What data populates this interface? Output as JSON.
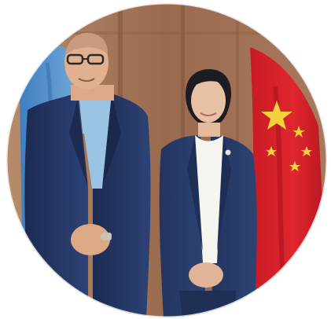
{
  "photo": {
    "subject": "two-people-standing-between-flags",
    "flags": [
      "united-nations-flag",
      "china-flag"
    ],
    "colors": {
      "wall": "#9a6a4e",
      "wall_shadow": "#7d523a",
      "un_flag": "#4f8fc9",
      "china_flag": "#d6202a",
      "star": "#f4d33a",
      "suit_dark": "#22345f",
      "suit_blazer": "#273a63",
      "shirt_blue": "#9bc3e4",
      "shirt_white": "#f6f4ef",
      "skin": "#e3b79a"
    }
  }
}
